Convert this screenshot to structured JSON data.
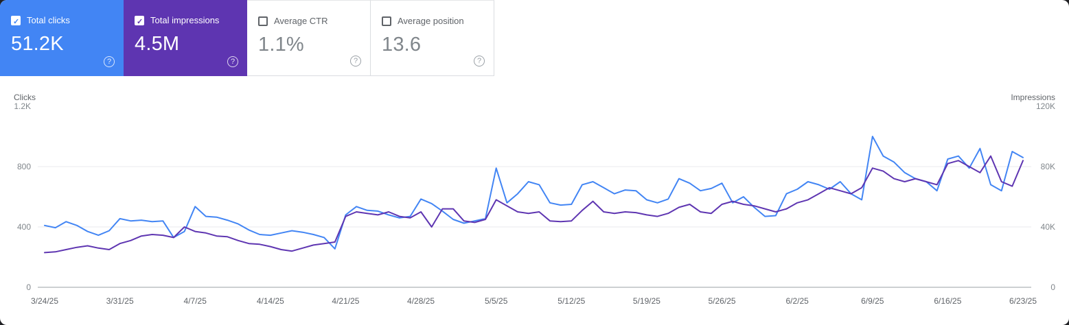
{
  "cards": [
    {
      "label": "Total clicks",
      "value": "51.2K",
      "checked": true,
      "bg": "#4285f4"
    },
    {
      "label": "Total impressions",
      "value": "4.5M",
      "checked": true,
      "bg": "#5e35b1"
    },
    {
      "label": "Average CTR",
      "value": "1.1%",
      "checked": false,
      "bg": null
    },
    {
      "label": "Average position",
      "value": "13.6",
      "checked": false,
      "bg": null
    }
  ],
  "chart_data": {
    "type": "line",
    "left_axis": {
      "label": "Clicks",
      "ticks": [
        "0",
        "400",
        "800",
        "1.2K"
      ],
      "max": 1200
    },
    "right_axis": {
      "label": "Impressions",
      "ticks": [
        "0",
        "40K",
        "80K",
        "120K"
      ],
      "max": 120000
    },
    "x_tick_labels": [
      "3/24/25",
      "3/31/25",
      "4/7/25",
      "4/14/25",
      "4/21/25",
      "4/28/25",
      "5/5/25",
      "5/12/25",
      "5/19/25",
      "5/26/25",
      "6/2/25",
      "6/9/25",
      "6/16/25",
      "6/23/25"
    ],
    "grid": "horizontal",
    "legend_position": "none",
    "series": [
      {
        "name": "Total clicks",
        "color": "#4285f4",
        "axis": "left",
        "values": [
          410,
          395,
          435,
          410,
          370,
          345,
          375,
          455,
          440,
          445,
          435,
          440,
          330,
          370,
          535,
          470,
          465,
          445,
          420,
          380,
          350,
          345,
          360,
          375,
          365,
          350,
          330,
          255,
          480,
          535,
          510,
          505,
          480,
          460,
          470,
          585,
          555,
          505,
          450,
          425,
          440,
          455,
          790,
          560,
          620,
          700,
          680,
          560,
          545,
          550,
          680,
          700,
          660,
          620,
          645,
          640,
          580,
          560,
          585,
          720,
          690,
          640,
          655,
          690,
          560,
          600,
          530,
          470,
          475,
          620,
          650,
          700,
          680,
          650,
          700,
          620,
          580,
          1000,
          870,
          830,
          760,
          720,
          700,
          640,
          850,
          870,
          790,
          920,
          680,
          640,
          900,
          860
        ]
      },
      {
        "name": "Total impressions",
        "color": "#5e35b1",
        "axis": "right",
        "values": [
          23000,
          23500,
          25000,
          26500,
          27500,
          26000,
          25000,
          29000,
          31000,
          34000,
          35000,
          34500,
          33000,
          40000,
          37000,
          36000,
          34000,
          33500,
          31000,
          29000,
          28500,
          27000,
          25000,
          24000,
          26000,
          28000,
          29000,
          30000,
          47000,
          50000,
          49000,
          48000,
          50000,
          47000,
          46000,
          50000,
          40000,
          52000,
          52000,
          44000,
          43000,
          45000,
          58000,
          54000,
          50000,
          49000,
          50000,
          44000,
          43500,
          44000,
          51000,
          57000,
          50000,
          49000,
          50000,
          49500,
          48000,
          47000,
          49000,
          53000,
          55000,
          50000,
          49000,
          55000,
          57000,
          55000,
          54000,
          52000,
          50000,
          52000,
          56000,
          58000,
          62000,
          66000,
          64000,
          62000,
          66000,
          79000,
          77000,
          72000,
          70000,
          72000,
          70000,
          68000,
          82000,
          84000,
          80000,
          76000,
          87000,
          70000,
          67000,
          84000
        ]
      }
    ]
  },
  "colors": {
    "grid_line": "#e8eaed",
    "baseline": "#9aa0a6",
    "axis_text": "#80868b"
  }
}
